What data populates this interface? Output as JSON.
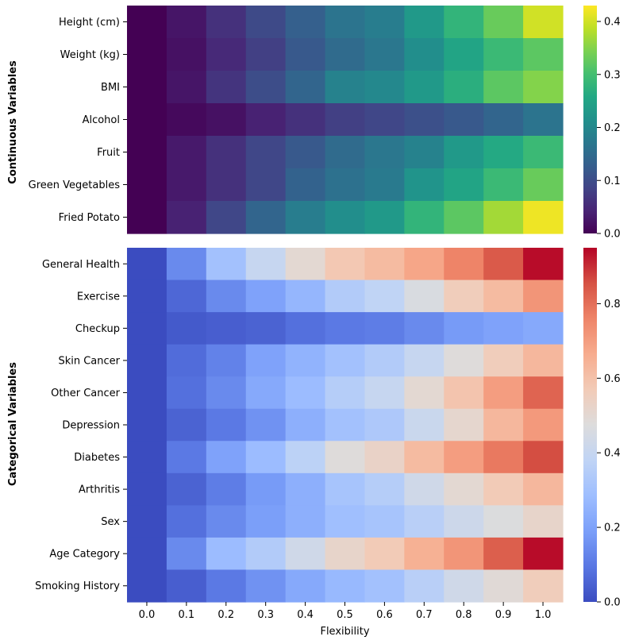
{
  "chart_data": [
    {
      "type": "heatmap",
      "ylabel": "Continuous Variables",
      "colormap": "viridis",
      "rows": [
        "Height (cm)",
        "Weight (kg)",
        "BMI",
        "Alcohol",
        "Fruit",
        "Green Vegetables",
        "Fried Potato"
      ],
      "columns": [
        "0.0",
        "0.1",
        "0.2",
        "0.3",
        "0.4",
        "0.5",
        "0.6",
        "0.7",
        "0.8",
        "0.9",
        "1.0"
      ],
      "values": [
        [
          0.0,
          0.025,
          0.06,
          0.095,
          0.13,
          0.165,
          0.18,
          0.23,
          0.28,
          0.33,
          0.4
        ],
        [
          0.0,
          0.02,
          0.05,
          0.08,
          0.12,
          0.15,
          0.17,
          0.21,
          0.25,
          0.29,
          0.32
        ],
        [
          0.0,
          0.025,
          0.065,
          0.1,
          0.14,
          0.19,
          0.2,
          0.23,
          0.27,
          0.32,
          0.35
        ],
        [
          0.0,
          0.01,
          0.02,
          0.04,
          0.06,
          0.08,
          0.09,
          0.105,
          0.12,
          0.14,
          0.165
        ],
        [
          0.0,
          0.03,
          0.06,
          0.09,
          0.12,
          0.15,
          0.17,
          0.19,
          0.23,
          0.26,
          0.29
        ],
        [
          0.0,
          0.03,
          0.06,
          0.09,
          0.135,
          0.16,
          0.175,
          0.22,
          0.25,
          0.29,
          0.33
        ],
        [
          0.0,
          0.04,
          0.09,
          0.14,
          0.18,
          0.21,
          0.23,
          0.28,
          0.32,
          0.37,
          0.42
        ]
      ],
      "colorbar_range": [
        0.0,
        0.43
      ],
      "colorbar_ticks": [
        0.0,
        0.1,
        0.2,
        0.3,
        0.4
      ],
      "colorbar_tick_labels": [
        "0.0",
        "0.1",
        "0.2",
        "0.3",
        "0.4"
      ]
    },
    {
      "type": "heatmap",
      "ylabel": "Categorical Variables",
      "xlabel": "Flexibility",
      "colormap": "coolwarm",
      "rows": [
        "General Health",
        "Exercise",
        "Checkup",
        "Skin Cancer",
        "Other Cancer",
        "Depression",
        "Diabetes",
        "Arthritis",
        "Sex",
        "Age Category",
        "Smoking History"
      ],
      "columns": [
        "0.0",
        "0.1",
        "0.2",
        "0.3",
        "0.4",
        "0.5",
        "0.6",
        "0.7",
        "0.8",
        "0.9",
        "1.0"
      ],
      "values": [
        [
          0.0,
          0.14,
          0.3,
          0.4,
          0.5,
          0.58,
          0.62,
          0.68,
          0.76,
          0.84,
          0.94
        ],
        [
          0.0,
          0.06,
          0.14,
          0.2,
          0.26,
          0.34,
          0.38,
          0.46,
          0.56,
          0.62,
          0.72
        ],
        [
          0.0,
          0.03,
          0.04,
          0.05,
          0.08,
          0.1,
          0.11,
          0.14,
          0.18,
          0.2,
          0.22
        ],
        [
          0.0,
          0.07,
          0.12,
          0.2,
          0.25,
          0.3,
          0.34,
          0.4,
          0.48,
          0.56,
          0.63
        ],
        [
          0.0,
          0.08,
          0.14,
          0.22,
          0.28,
          0.35,
          0.4,
          0.5,
          0.59,
          0.7,
          0.82
        ],
        [
          0.0,
          0.05,
          0.1,
          0.16,
          0.24,
          0.3,
          0.33,
          0.41,
          0.51,
          0.63,
          0.71
        ],
        [
          0.0,
          0.1,
          0.2,
          0.28,
          0.37,
          0.48,
          0.53,
          0.62,
          0.7,
          0.78,
          0.86
        ],
        [
          0.0,
          0.05,
          0.11,
          0.18,
          0.24,
          0.31,
          0.35,
          0.43,
          0.5,
          0.57,
          0.63
        ],
        [
          0.0,
          0.08,
          0.14,
          0.19,
          0.24,
          0.29,
          0.31,
          0.36,
          0.42,
          0.47,
          0.52
        ],
        [
          0.0,
          0.14,
          0.28,
          0.34,
          0.43,
          0.52,
          0.57,
          0.65,
          0.72,
          0.83,
          0.94
        ],
        [
          0.0,
          0.04,
          0.1,
          0.16,
          0.22,
          0.27,
          0.3,
          0.36,
          0.43,
          0.49,
          0.56
        ]
      ],
      "colorbar_range": [
        0.0,
        0.95
      ],
      "colorbar_ticks": [
        0.0,
        0.2,
        0.4,
        0.6,
        0.8
      ],
      "colorbar_tick_labels": [
        "0.0",
        "0.2",
        "0.4",
        "0.6",
        "0.8"
      ]
    }
  ]
}
